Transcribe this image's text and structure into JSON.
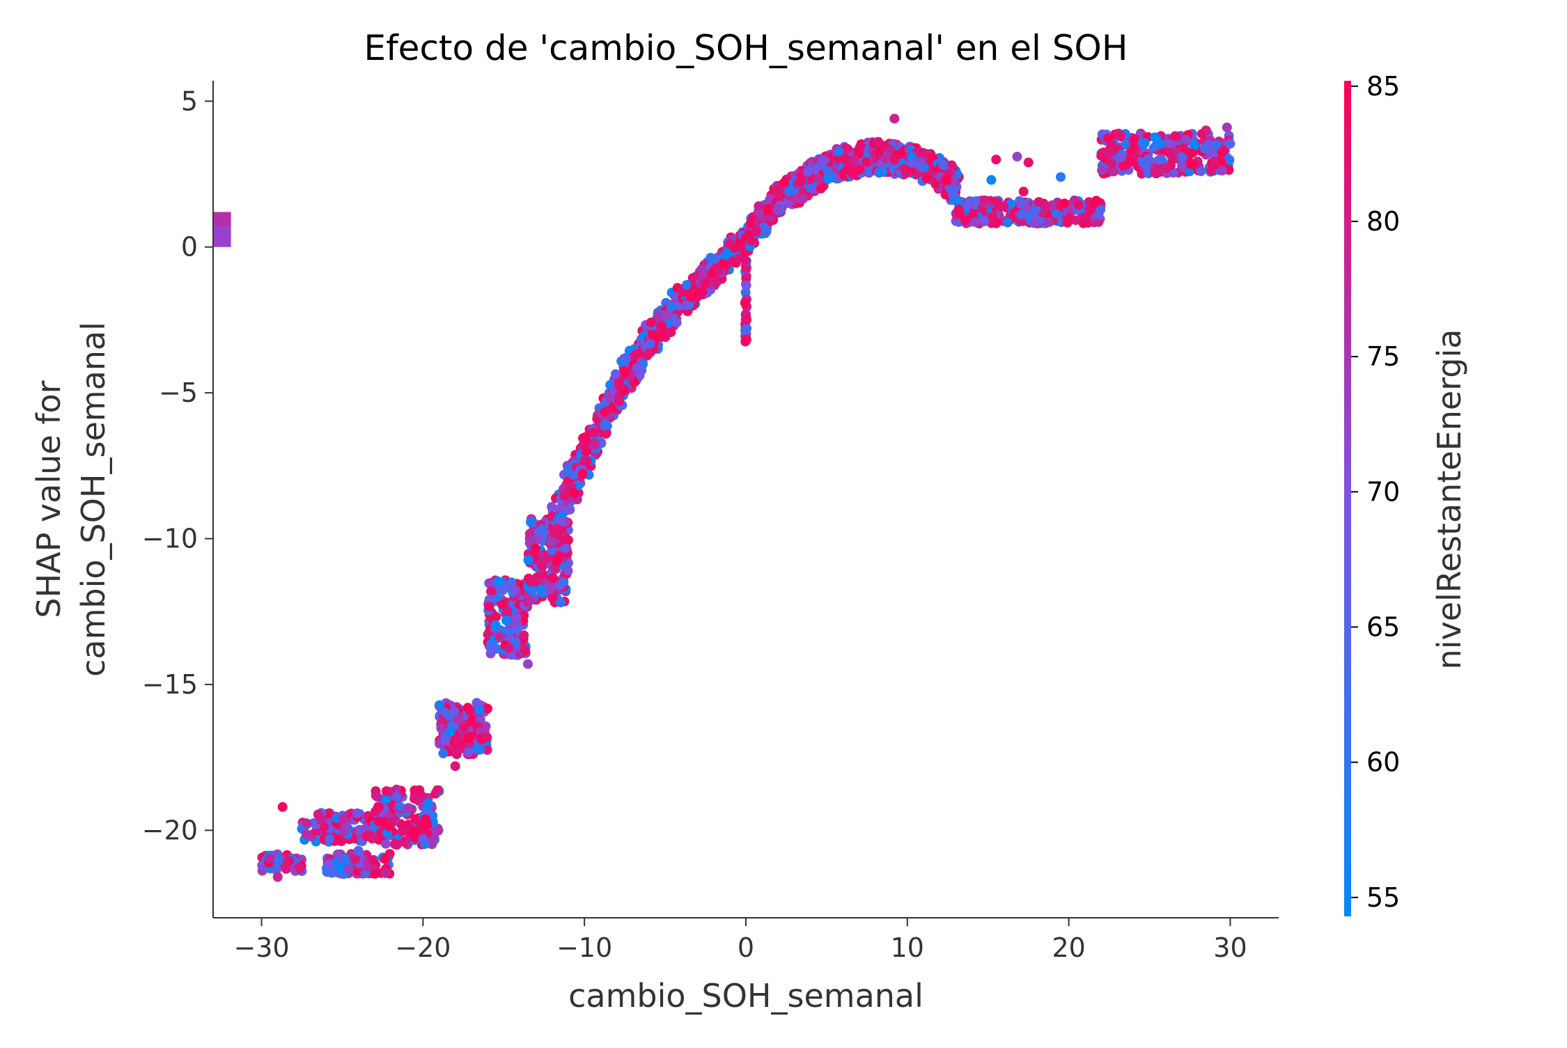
{
  "chart_data": {
    "type": "scatter",
    "title": "Efecto de 'cambio_SOH_semanal' en el SOH",
    "xlabel": "cambio_SOH_semanal",
    "ylabel_line1": "SHAP value for",
    "ylabel_line2": "cambio_SOH_semanal",
    "xlim": [
      -33,
      33
    ],
    "ylim": [
      -23,
      5.7
    ],
    "x_ticks": [
      -30,
      -20,
      -10,
      0,
      10,
      20,
      30
    ],
    "x_tick_labels": [
      "−30",
      "−20",
      "−10",
      "0",
      "10",
      "20",
      "30"
    ],
    "y_ticks": [
      5,
      0,
      -5,
      -10,
      -15,
      -20
    ],
    "y_tick_labels": [
      "5",
      "0",
      "−5",
      "−10",
      "−15",
      "−20"
    ],
    "grid": false,
    "colorbar": {
      "label": "nivelRestanteEnergia",
      "range": [
        54.3,
        85.2
      ],
      "ticks": [
        55,
        60,
        65,
        70,
        75,
        80,
        85
      ],
      "tick_labels": [
        "55",
        "60",
        "65",
        "70",
        "75",
        "80",
        "85"
      ],
      "color_low": "#008afb",
      "color_mid": "#7c52e6",
      "color_high": "#ff0052"
    },
    "series": [
      {
        "outlier_block": {
          "x": -32.5,
          "y_range": [
            0,
            1.2
          ]
        },
        "clusters": [
          {
            "x": [
              -30,
              -27.5
            ],
            "y": [
              -21.4,
              -20.8
            ],
            "n": 40
          },
          {
            "x": [
              -27.5,
              -23
            ],
            "y": [
              -20.4,
              -19.4
            ],
            "n": 60
          },
          {
            "x": [
              -26,
              -22
            ],
            "y": [
              -21.5,
              -20.8
            ],
            "n": 50
          },
          {
            "x": [
              -23,
              -19
            ],
            "y": [
              -20.5,
              -18.6
            ],
            "n": 80
          },
          {
            "x": [
              -19,
              -16
            ],
            "y": [
              -17.4,
              -15.6
            ],
            "n": 90
          },
          {
            "x": [
              -16,
              -13.5
            ],
            "y": [
              -14,
              -11.4
            ],
            "n": 80
          },
          {
            "x": [
              -13.5,
              -11
            ],
            "y": [
              -12.2,
              -9.3
            ],
            "n": 90
          }
        ],
        "curve": [
          {
            "x": -12,
            "y": -9.6
          },
          {
            "x": -10,
            "y": -7.2
          },
          {
            "x": -8,
            "y": -5.0
          },
          {
            "x": -6,
            "y": -3.2
          },
          {
            "x": -4,
            "y": -1.8
          },
          {
            "x": -2,
            "y": -0.8
          },
          {
            "x": 0,
            "y": 0.3
          },
          {
            "x": 2,
            "y": 1.6
          },
          {
            "x": 4,
            "y": 2.3
          },
          {
            "x": 6,
            "y": 2.9
          },
          {
            "x": 8,
            "y": 3.1
          },
          {
            "x": 10,
            "y": 3.0
          },
          {
            "x": 12,
            "y": 2.6
          },
          {
            "x": 13,
            "y": 2.0
          }
        ],
        "vertical_streak": {
          "x": 0,
          "y_range": [
            -3.3,
            -0.4
          ]
        },
        "plateau_1": {
          "x": [
            13,
            22
          ],
          "y": [
            0.8,
            1.6
          ]
        },
        "plateau_2": {
          "x": [
            22,
            30
          ],
          "y": [
            2.5,
            3.9
          ]
        },
        "scattered_outliers": [
          {
            "x": 15.5,
            "y": 3.0
          },
          {
            "x": 16.8,
            "y": 3.1
          },
          {
            "x": 17.5,
            "y": 2.9
          },
          {
            "x": 19.5,
            "y": 2.4
          },
          {
            "x": 15.2,
            "y": 2.3
          },
          {
            "x": 17.2,
            "y": 1.9
          },
          {
            "x": 29.8,
            "y": 4.1
          },
          {
            "x": 28.5,
            "y": 4.0
          },
          {
            "x": 9.2,
            "y": 4.4
          },
          {
            "x": -13.5,
            "y": -14.3
          },
          {
            "x": -18,
            "y": -17.8
          },
          {
            "x": -20,
            "y": -20.3
          },
          {
            "x": -29,
            "y": -21.6
          },
          {
            "x": -28.7,
            "y": -19.2
          },
          {
            "x": -24,
            "y": -20.7
          }
        ]
      }
    ]
  }
}
